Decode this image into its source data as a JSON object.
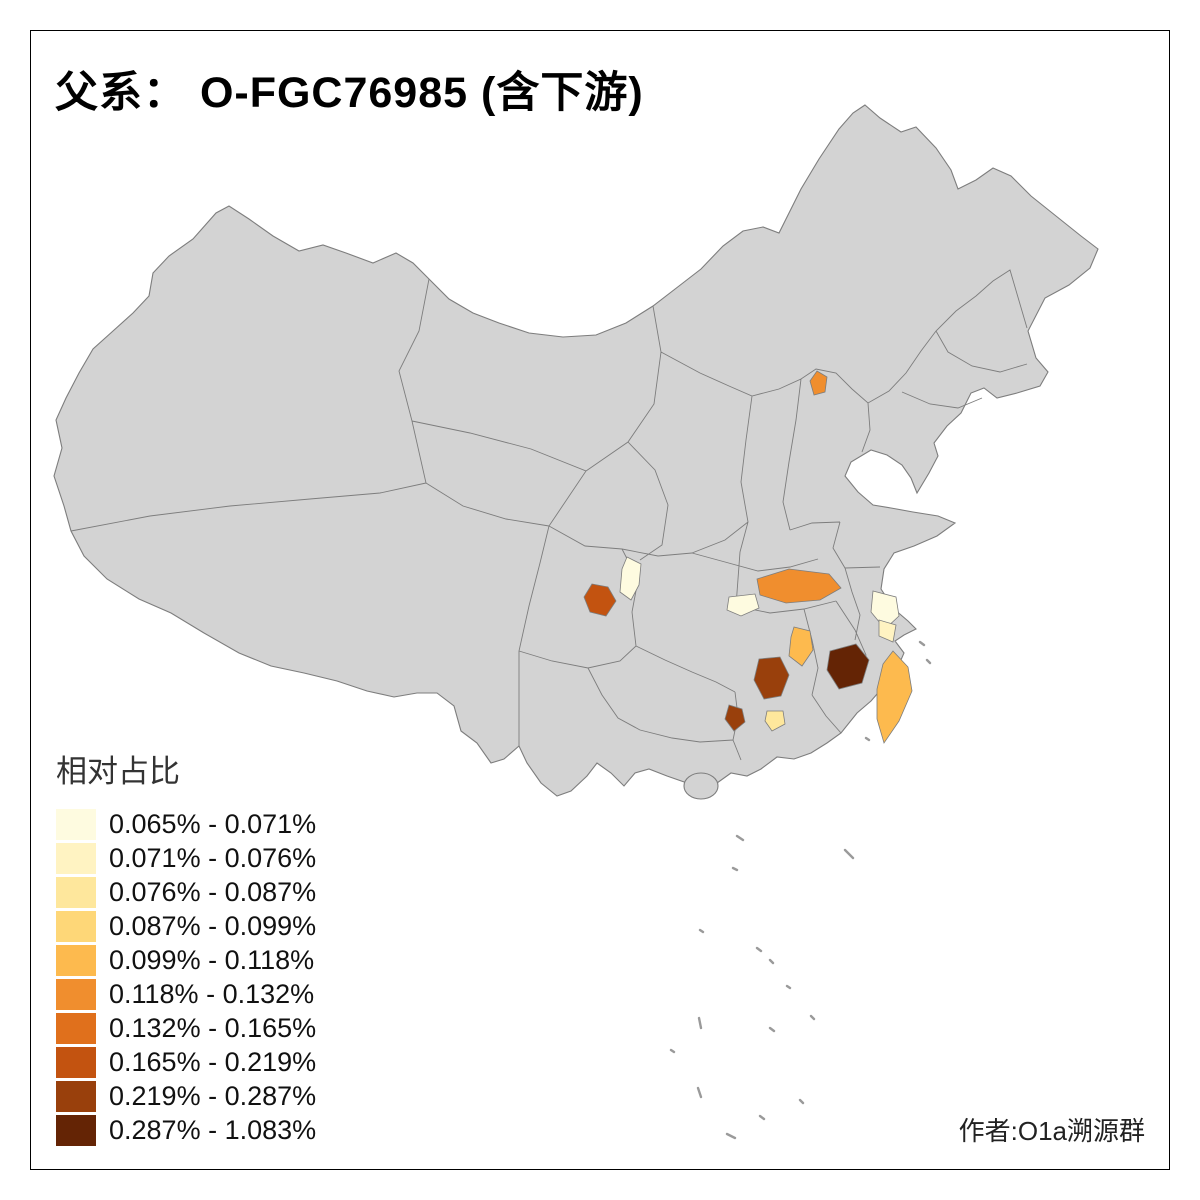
{
  "title": "父系：  O-FGC76985 (含下游)",
  "attribution": "作者:O1a溯源群",
  "legend": {
    "title": "相对占比",
    "items": [
      {
        "label": "0.065% - 0.071%",
        "color": "#FEFBE0"
      },
      {
        "label": "0.071% - 0.076%",
        "color": "#FFF3C2"
      },
      {
        "label": "0.076% - 0.087%",
        "color": "#FEE79C"
      },
      {
        "label": "0.087% - 0.099%",
        "color": "#FED778"
      },
      {
        "label": "0.099% - 0.118%",
        "color": "#FDBA4E"
      },
      {
        "label": "0.118% - 0.132%",
        "color": "#F08E2E"
      },
      {
        "label": "0.132% - 0.165%",
        "color": "#E0701C"
      },
      {
        "label": "0.165% - 0.219%",
        "color": "#C35310"
      },
      {
        "label": "0.219% - 0.287%",
        "color": "#99400C"
      },
      {
        "label": "0.287% - 1.083%",
        "color": "#642405"
      }
    ]
  },
  "map": {
    "land_fill": "#D3D3D3",
    "border_color": "#7D7D7D",
    "sea_fill": "#FFFFFF",
    "highlights": [
      {
        "name": "beijing-area",
        "color": "#F08E2E"
      },
      {
        "name": "sichuan-pale",
        "color": "#FEFBE0"
      },
      {
        "name": "chongqing-dark",
        "color": "#C35310"
      },
      {
        "name": "hubei-orange",
        "color": "#F08E2E"
      },
      {
        "name": "hubei-west-pale",
        "color": "#FEFBE0"
      },
      {
        "name": "hunan-orange",
        "color": "#FDBA4E"
      },
      {
        "name": "hunan-south-dark",
        "color": "#99400C"
      },
      {
        "name": "fujian-west-darkest",
        "color": "#642405"
      },
      {
        "name": "guangdong-dark",
        "color": "#99400C"
      },
      {
        "name": "guangdong-pale",
        "color": "#FEE79C"
      },
      {
        "name": "zhejiang-pale-1",
        "color": "#FEFBE0"
      },
      {
        "name": "zhejiang-pale-2",
        "color": "#FFF3C2"
      },
      {
        "name": "taiwan",
        "color": "#FDBA4E"
      }
    ]
  }
}
